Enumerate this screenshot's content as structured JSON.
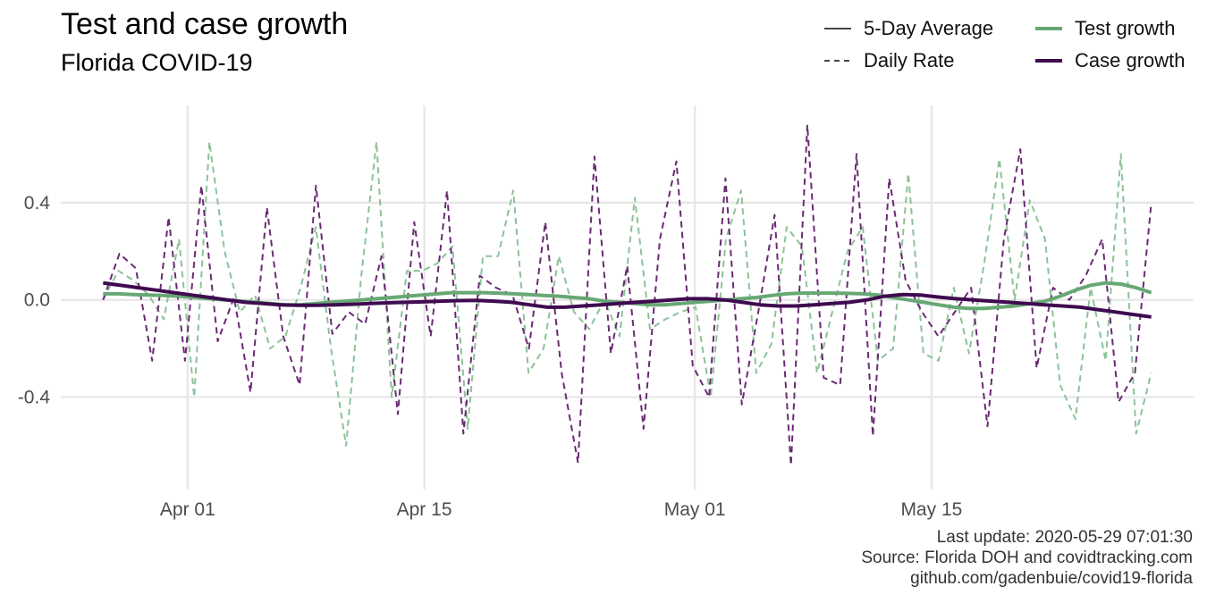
{
  "chart_data": {
    "type": "line",
    "title": "Test and case growth",
    "subtitle": "Florida COVID-19",
    "x_start": "2020-03-27",
    "x_end": "2020-05-28",
    "x_ticks": [
      {
        "date": "2020-04-01",
        "label": "Apr 01"
      },
      {
        "date": "2020-04-15",
        "label": "Apr 15"
      },
      {
        "date": "2020-05-01",
        "label": "May 01"
      },
      {
        "date": "2020-05-15",
        "label": "May 15"
      }
    ],
    "y_ticks": [
      {
        "value": 0.4,
        "label": "0.4"
      },
      {
        "value": 0.0,
        "label": "0.0"
      },
      {
        "value": -0.4,
        "label": "-0.4"
      }
    ],
    "ylim": [
      -0.78,
      0.8
    ],
    "grid": true,
    "legend": {
      "placement": "top-right",
      "linetype": [
        {
          "label": "5-Day Average",
          "style": "solid"
        },
        {
          "label": "Daily Rate",
          "style": "dashed"
        }
      ],
      "color": [
        {
          "label": "Test growth",
          "color": "#66a873"
        },
        {
          "label": "Case growth",
          "color": "#3f0a4f"
        }
      ]
    },
    "series": [
      {
        "name": "Test growth",
        "linetype": "Daily Rate",
        "color": "#8cc299",
        "values": [
          0.0,
          0.12,
          0.08,
          0.02,
          -0.08,
          0.25,
          -0.4,
          0.65,
          0.2,
          -0.05,
          0.02,
          -0.2,
          -0.15,
          0.05,
          0.3,
          -0.2,
          -0.6,
          0.1,
          0.65,
          -0.4,
          0.12,
          0.12,
          0.15,
          0.22,
          -0.53,
          0.18,
          0.18,
          0.45,
          -0.3,
          -0.2,
          0.18,
          -0.05,
          -0.12,
          0.0,
          -0.15,
          0.42,
          -0.12,
          -0.08,
          -0.05,
          -0.03,
          -0.4,
          0.25,
          0.45,
          -0.3,
          -0.18,
          0.3,
          0.22,
          -0.3,
          -0.05,
          0.2,
          0.3,
          -0.25,
          -0.2,
          0.52,
          -0.22,
          -0.25,
          0.05,
          -0.22,
          0.15,
          0.58,
          0.0,
          0.41,
          0.25,
          -0.35,
          -0.49,
          0.05,
          -0.25,
          0.6,
          -0.55,
          -0.3
        ]
      },
      {
        "name": "Case growth",
        "linetype": "Daily Rate",
        "color": "#6a2a73",
        "values": [
          0.0,
          0.19,
          0.13,
          -0.25,
          0.34,
          -0.25,
          0.47,
          -0.17,
          0.01,
          -0.38,
          0.38,
          -0.15,
          -0.35,
          0.47,
          -0.14,
          -0.05,
          -0.1,
          0.18,
          -0.47,
          0.32,
          -0.15,
          0.45,
          -0.55,
          0.1,
          0.05,
          0.02,
          -0.2,
          0.32,
          -0.3,
          -0.67,
          0.59,
          -0.22,
          0.14,
          -0.53,
          0.25,
          0.57,
          -0.27,
          -0.4,
          0.5,
          -0.43,
          -0.05,
          0.35,
          -0.68,
          0.72,
          -0.32,
          -0.35,
          0.6,
          -0.56,
          0.5,
          0.08,
          -0.05,
          -0.15,
          -0.05,
          0.05,
          -0.52,
          0.25,
          0.62,
          -0.28,
          0.05,
          0.0,
          0.1,
          0.25,
          -0.42,
          -0.3,
          0.4
        ]
      },
      {
        "name": "Test growth",
        "linetype": "5-Day Average",
        "color": "#66a873",
        "values": [
          0.025,
          0.025,
          0.022,
          0.02,
          0.018,
          0.015,
          0.01,
          0.005,
          0.0,
          -0.005,
          -0.01,
          -0.015,
          -0.02,
          -0.02,
          -0.015,
          -0.01,
          -0.005,
          0.0,
          0.005,
          0.01,
          0.015,
          0.02,
          0.025,
          0.03,
          0.03,
          0.03,
          0.028,
          0.025,
          0.022,
          0.018,
          0.015,
          0.01,
          0.005,
          -0.005,
          -0.01,
          -0.015,
          -0.02,
          -0.02,
          -0.015,
          -0.01,
          -0.005,
          0.0,
          0.005,
          0.01,
          0.018,
          0.025,
          0.028,
          0.028,
          0.028,
          0.027,
          0.025,
          0.02,
          0.01,
          0.0,
          -0.01,
          -0.02,
          -0.03,
          -0.035,
          -0.035,
          -0.03,
          -0.025,
          -0.015,
          -0.005,
          0.015,
          0.04,
          0.06,
          0.07,
          0.065,
          0.05,
          0.03
        ]
      },
      {
        "name": "Case growth",
        "linetype": "5-Day Average",
        "color": "#3f0a4f",
        "values": [
          0.07,
          0.06,
          0.05,
          0.04,
          0.03,
          0.02,
          0.01,
          0.0,
          -0.01,
          -0.015,
          -0.02,
          -0.022,
          -0.022,
          -0.02,
          -0.018,
          -0.015,
          -0.012,
          -0.01,
          -0.008,
          -0.005,
          -0.003,
          -0.002,
          -0.005,
          -0.01,
          -0.02,
          -0.03,
          -0.03,
          -0.025,
          -0.02,
          -0.015,
          -0.01,
          -0.005,
          0.0,
          0.005,
          0.005,
          0.0,
          -0.01,
          -0.02,
          -0.025,
          -0.025,
          -0.02,
          -0.015,
          -0.01,
          0.0,
          0.015,
          0.022,
          0.02,
          0.012,
          0.005,
          0.0,
          -0.005,
          -0.01,
          -0.015,
          -0.02,
          -0.025,
          -0.03,
          -0.04,
          -0.05,
          -0.06,
          -0.07
        ]
      }
    ]
  },
  "caption": {
    "line1": "Last update: 2020-05-29 07:01:30",
    "line2": "Source: Florida DOH and covidtracking.com",
    "line3": "github.com/gadenbuie/covid19-florida"
  }
}
